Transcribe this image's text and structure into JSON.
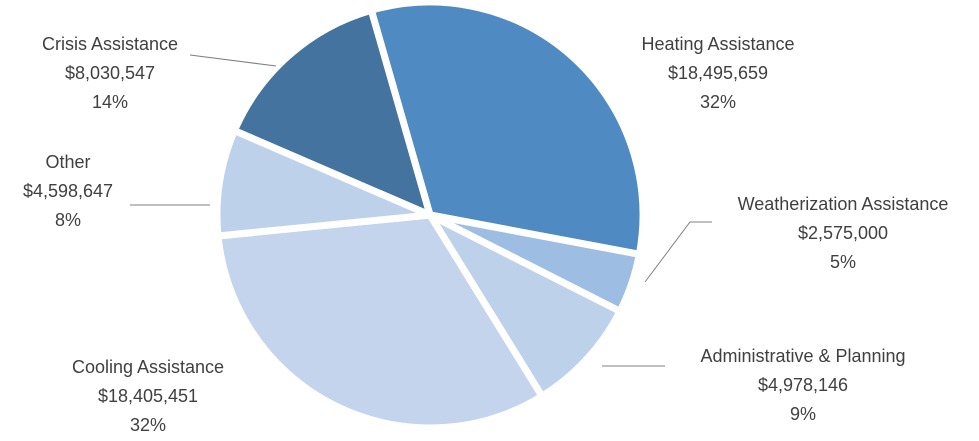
{
  "chart_data": {
    "type": "pie",
    "categories": [
      "Heating Assistance",
      "Weatherization Assistance",
      "Administrative & Planning",
      "Cooling Assistance",
      "Other",
      "Crisis Assistance"
    ],
    "values": [
      18495659,
      2575000,
      4978146,
      18405451,
      4598647,
      8030547
    ],
    "value_labels": [
      "$18,495,659",
      "$2,575,000",
      "$4,978,146",
      "$18,405,451",
      "$4,598,647",
      "$8,030,547"
    ],
    "percent_labels": [
      "32%",
      "5%",
      "9%",
      "32%",
      "8%",
      "14%"
    ],
    "colors": [
      "#4f8bc2",
      "#9dbde3",
      "#bdd1ea",
      "#c3d4ec",
      "#bdd1ea",
      "#44739f"
    ]
  }
}
